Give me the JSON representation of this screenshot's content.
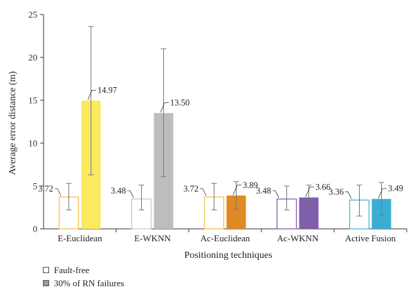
{
  "chart_data": {
    "type": "bar",
    "categories": [
      "E-Euclidean",
      "E-WKNN",
      "Ac-Euclidean",
      "Ac-WKNN",
      "Active Fusion"
    ],
    "series": [
      {
        "name": "Fault-free",
        "values": [
          3.72,
          3.48,
          3.72,
          3.48,
          3.36
        ],
        "error_low": [
          2.2,
          2.2,
          2.2,
          2.2,
          1.5
        ],
        "error_high": [
          5.3,
          5.1,
          5.3,
          5.0,
          5.1
        ]
      },
      {
        "name": "30% of RN failures",
        "values": [
          14.97,
          13.5,
          3.89,
          3.66,
          3.49
        ],
        "error_low": [
          6.3,
          6.1,
          2.3,
          2.3,
          1.6
        ],
        "error_high": [
          23.6,
          21.0,
          5.5,
          5.1,
          5.4
        ]
      }
    ],
    "value_labels": [
      [
        "3.72",
        "3.48",
        "3.72",
        "3.48",
        "3.36"
      ],
      [
        "14.97",
        "13.50",
        "3.89",
        "3.66",
        "3.49"
      ]
    ],
    "xlabel": "Positioning techniques",
    "ylabel": "Average error distance (m)",
    "ylim": [
      0,
      25
    ],
    "yticks": [
      "0",
      "5",
      "10",
      "15",
      "20",
      "25"
    ],
    "grid": false,
    "legend_placement": "bottom-left",
    "colors": {
      "fault_free_edges": [
        "#f2c14e",
        "#c8c8c8",
        "#f2c14e",
        "#7f62b0",
        "#4fb3d4"
      ],
      "failure_fills": [
        "#fbe960",
        "#bdbdbd",
        "#df8a24",
        "#7f5fab",
        "#3aaed2"
      ],
      "legend_fault_free": "#ffffff",
      "legend_failure": "#999999",
      "axis": "#333333",
      "errorbar": "#777777"
    }
  }
}
